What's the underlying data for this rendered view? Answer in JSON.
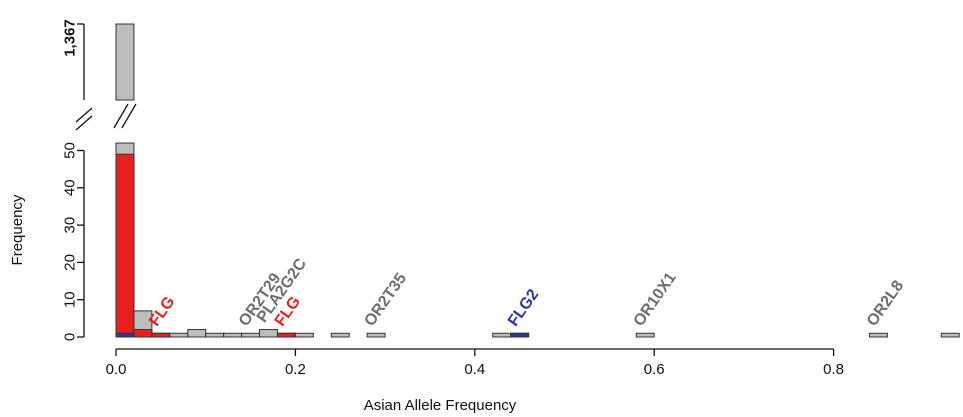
{
  "chart_data": {
    "type": "bar",
    "xlabel": "Asian Allele Frequency",
    "ylabel": "Frequency",
    "xlim": [
      0,
      0.93
    ],
    "ylim": [
      0,
      52
    ],
    "x_ticks": [
      "0.0",
      "0.2",
      "0.4",
      "0.6",
      "0.8"
    ],
    "x_tick_values": [
      0,
      0.2,
      0.4,
      0.6,
      0.8
    ],
    "y_ticks": [
      "0",
      "10",
      "20",
      "30",
      "40",
      "50"
    ],
    "y_tick_values": [
      0,
      10,
      20,
      30,
      40,
      50
    ],
    "broken_axis": {
      "upper_label": "1,367",
      "upper_value": 1367
    },
    "bin_width": 0.02,
    "colors": {
      "gray": "#bdbdbd",
      "red": "#e8211f",
      "blue": "#2c3a9a"
    },
    "bins": [
      {
        "x0": 0.0,
        "x1": 0.02,
        "gray": 1367,
        "red": 49,
        "blue": 1
      },
      {
        "x0": 0.02,
        "x1": 0.04,
        "gray": 7,
        "red": 2,
        "blue": 0
      },
      {
        "x0": 0.04,
        "x1": 0.06,
        "gray": 1,
        "red": 1,
        "blue": 0
      },
      {
        "x0": 0.06,
        "x1": 0.08,
        "gray": 1,
        "red": 0,
        "blue": 0
      },
      {
        "x0": 0.08,
        "x1": 0.1,
        "gray": 2,
        "red": 0,
        "blue": 0
      },
      {
        "x0": 0.1,
        "x1": 0.12,
        "gray": 1,
        "red": 0,
        "blue": 0
      },
      {
        "x0": 0.12,
        "x1": 0.14,
        "gray": 1,
        "red": 0,
        "blue": 0
      },
      {
        "x0": 0.14,
        "x1": 0.16,
        "gray": 1,
        "red": 0,
        "blue": 0
      },
      {
        "x0": 0.16,
        "x1": 0.18,
        "gray": 2,
        "red": 0,
        "blue": 0
      },
      {
        "x0": 0.18,
        "x1": 0.2,
        "gray": 1,
        "red": 1,
        "blue": 0
      },
      {
        "x0": 0.2,
        "x1": 0.22,
        "gray": 1,
        "red": 0,
        "blue": 0
      },
      {
        "x0": 0.24,
        "x1": 0.26,
        "gray": 1,
        "red": 0,
        "blue": 0
      },
      {
        "x0": 0.28,
        "x1": 0.3,
        "gray": 1,
        "red": 0,
        "blue": 0
      },
      {
        "x0": 0.42,
        "x1": 0.44,
        "gray": 1,
        "red": 0,
        "blue": 0
      },
      {
        "x0": 0.44,
        "x1": 0.46,
        "gray": 1,
        "red": 0,
        "blue": 1
      },
      {
        "x0": 0.58,
        "x1": 0.6,
        "gray": 1,
        "red": 0,
        "blue": 0
      },
      {
        "x0": 0.84,
        "x1": 0.86,
        "gray": 1,
        "red": 0,
        "blue": 0
      },
      {
        "x0": 0.92,
        "x1": 0.94,
        "gray": 1,
        "red": 0,
        "blue": 0
      }
    ],
    "annotations": [
      {
        "text": "FLG",
        "color": "red",
        "x": 0.05,
        "y": 1
      },
      {
        "text": "OR2T29",
        "color": "gray",
        "x": 0.15,
        "y": 1
      },
      {
        "text": "PLA2G2C",
        "color": "gray",
        "x": 0.17,
        "y": 2
      },
      {
        "text": "FLG",
        "color": "red",
        "x": 0.19,
        "y": 1
      },
      {
        "text": "OR2T35",
        "color": "gray",
        "x": 0.29,
        "y": 1
      },
      {
        "text": "FLG2",
        "color": "blue",
        "x": 0.45,
        "y": 1
      },
      {
        "text": "OR10X1",
        "color": "gray",
        "x": 0.59,
        "y": 1
      },
      {
        "text": "OR2L8",
        "color": "gray",
        "x": 0.85,
        "y": 1
      }
    ],
    "annotation_colors": {
      "red": "#e8211f",
      "gray": "#6e6e6e",
      "blue": "#2c3a9a"
    }
  }
}
